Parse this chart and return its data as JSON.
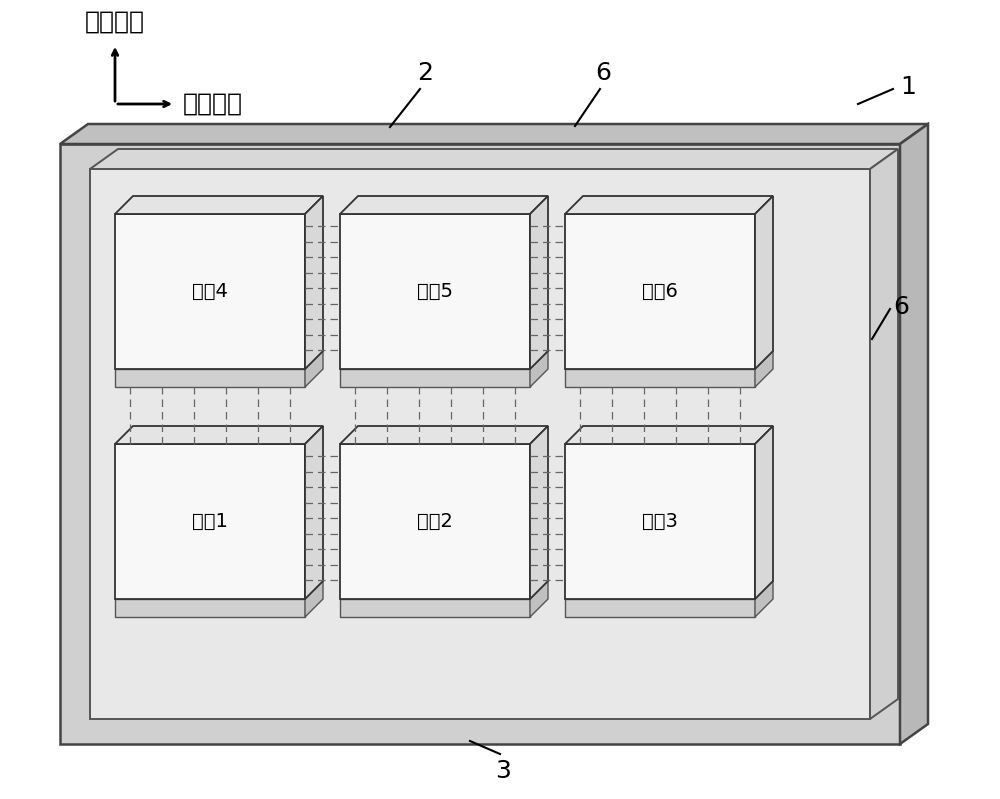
{
  "bg_color": "#ffffff",
  "axis_label1": "第一方向",
  "axis_label2": "第二方向",
  "die_labels": [
    "裸片4",
    "裸片5",
    "裸片6",
    "裸片1",
    "裸片2",
    "裸片3"
  ],
  "ref_nums": [
    "1",
    "2",
    "3",
    "6",
    "6"
  ],
  "outer_face_color": "#d0d0d0",
  "outer_top_color": "#c0c0c0",
  "outer_right_color": "#b8b8b8",
  "inner_face_color": "#e8e8e8",
  "inner_top_color": "#d8d8d8",
  "inner_right_color": "#d0d0d0",
  "die_face_color": "#f8f8f8",
  "die_top_color": "#e4e4e4",
  "die_right_color": "#d8d8d8",
  "base_face_color": "#d0d0d0",
  "base_top_color": "#c8c8c8",
  "base_right_color": "#c0c0c0"
}
